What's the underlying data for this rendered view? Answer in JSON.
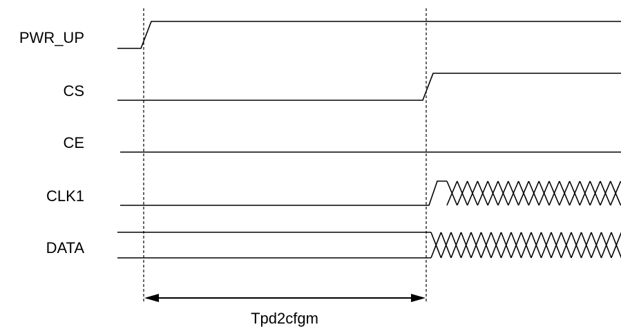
{
  "signals": [
    {
      "name": "PWR_UP"
    },
    {
      "name": "CS"
    },
    {
      "name": "CE"
    },
    {
      "name": "CLK1"
    },
    {
      "name": "DATA"
    }
  ],
  "timing": {
    "label": "Tpd2cfgm"
  },
  "colors": {
    "line": "#000000",
    "background": "#ffffff"
  }
}
